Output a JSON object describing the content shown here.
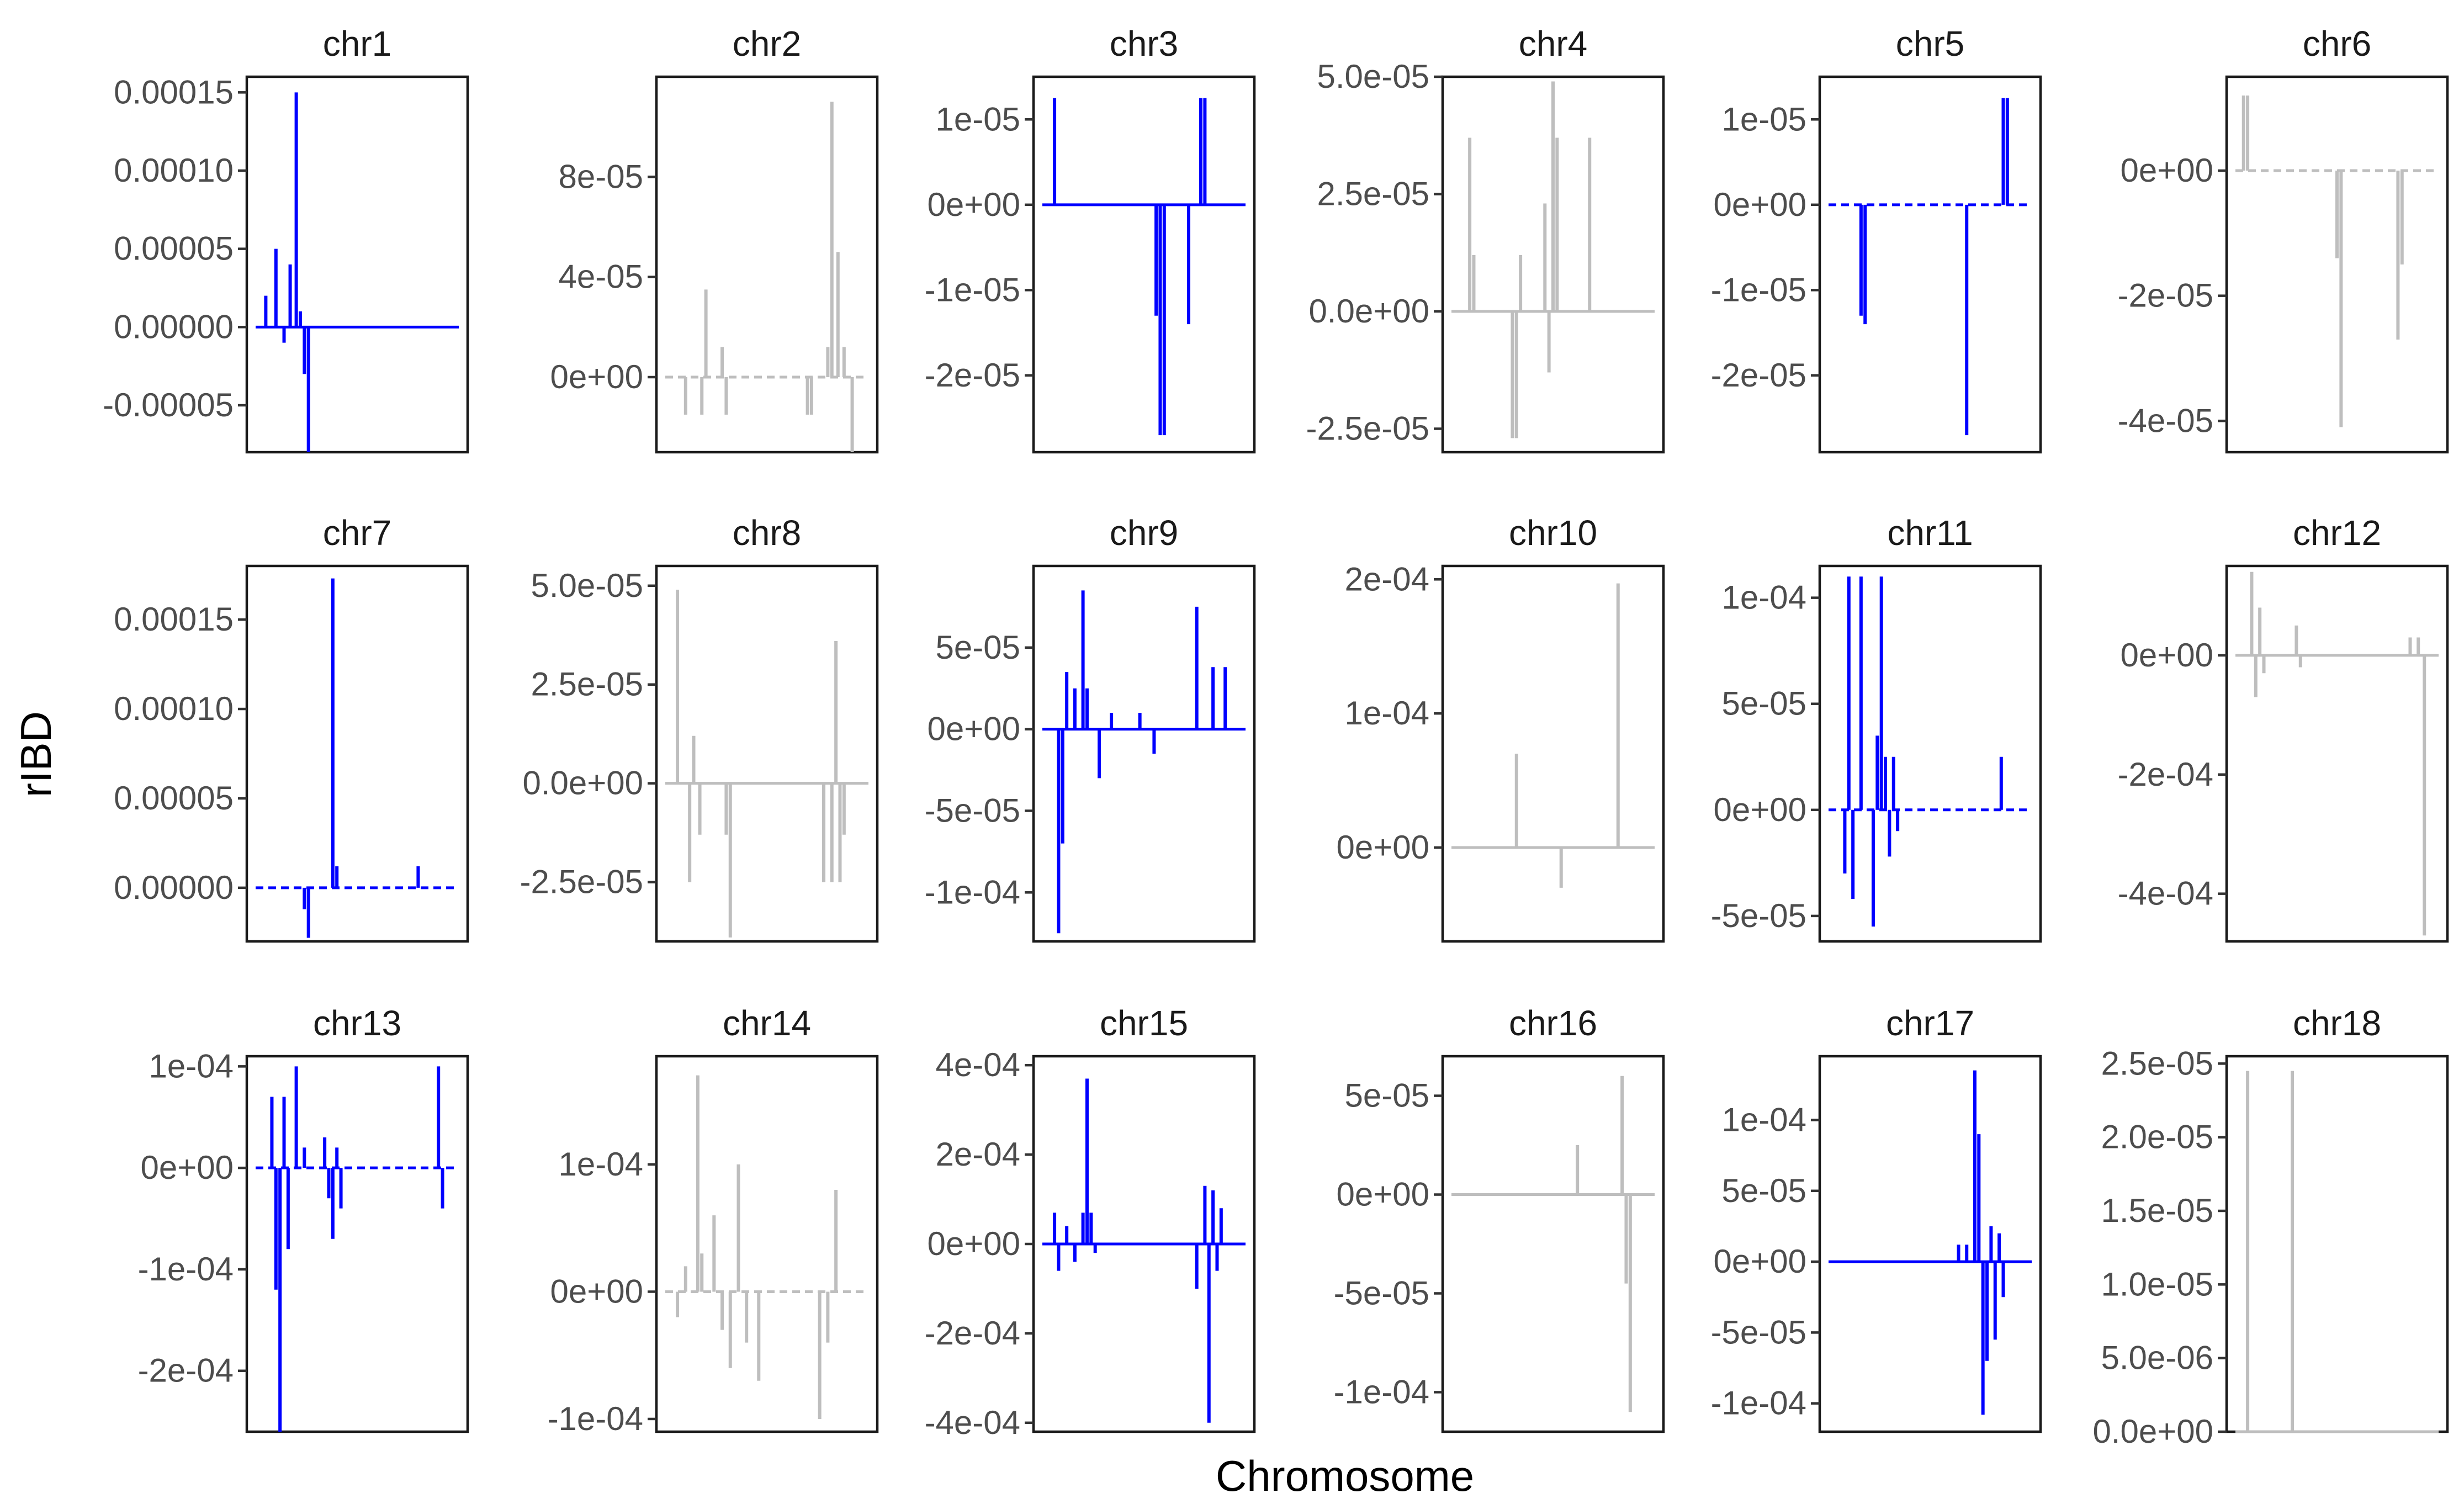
{
  "figure": {
    "x_axis_title": "Chromosome",
    "y_axis_title": "rIBD"
  },
  "colors": {
    "highlight": "#0000ff",
    "muted": "#bebebe",
    "frame": "#1a1a1a",
    "text": "#1a1a1a",
    "tick_text": "#4d4d4d"
  },
  "chart_data": [
    {
      "type": "line",
      "title": "chr1",
      "style": "highlight",
      "dashed_baseline": false,
      "ylim": [
        -8e-05,
        0.00016
      ],
      "y_ticks": [
        -5e-05,
        0,
        5e-05,
        0.0001,
        0.00015
      ],
      "y_tick_labels": [
        "-0.00005",
        "0.00000",
        "0.00005",
        "0.00010",
        "0.00015"
      ],
      "x": [
        0.05,
        0.1,
        0.14,
        0.17,
        0.2,
        0.22,
        0.24,
        0.26,
        0.28,
        0.3,
        0.45,
        0.6,
        0.75,
        0.9,
        0.99
      ],
      "values": [
        2e-05,
        5e-05,
        -1e-05,
        4e-05,
        0.00015,
        1e-05,
        -3e-05,
        -8e-05,
        0,
        0,
        0,
        0,
        0,
        0,
        0
      ]
    },
    {
      "type": "line",
      "title": "chr2",
      "style": "muted",
      "dashed_baseline": true,
      "ylim": [
        -3e-05,
        0.00012
      ],
      "y_ticks": [
        0,
        4e-05,
        8e-05
      ],
      "y_tick_labels": [
        "0e+00",
        "4e-05",
        "8e-05"
      ],
      "x": [
        0.1,
        0.18,
        0.2,
        0.28,
        0.3,
        0.7,
        0.72,
        0.8,
        0.82,
        0.85,
        0.88,
        0.92
      ],
      "values": [
        -1.5e-05,
        -1.5e-05,
        3.5e-05,
        1.2e-05,
        -1.5e-05,
        -1.5e-05,
        -1.5e-05,
        1.2e-05,
        0.00011,
        5e-05,
        1.2e-05,
        -3e-05
      ]
    },
    {
      "type": "line",
      "title": "chr3",
      "style": "highlight",
      "dashed_baseline": false,
      "ylim": [
        -2.9e-05,
        1.5e-05
      ],
      "y_ticks": [
        -2e-05,
        -1e-05,
        0,
        1e-05
      ],
      "y_tick_labels": [
        "-2e-05",
        "-1e-05",
        "0e+00",
        "1e-05"
      ],
      "x": [
        0.06,
        0.56,
        0.58,
        0.6,
        0.72,
        0.78,
        0.8
      ],
      "values": [
        1.25e-05,
        -1.3e-05,
        -2.7e-05,
        -2.7e-05,
        -1.4e-05,
        1.25e-05,
        1.25e-05
      ]
    },
    {
      "type": "line",
      "title": "chr4",
      "style": "muted",
      "dashed_baseline": false,
      "ylim": [
        -3e-05,
        5e-05
      ],
      "y_ticks": [
        -2.5e-05,
        0,
        2.5e-05,
        5e-05
      ],
      "y_tick_labels": [
        "-2.5e-05",
        "0.0e+00",
        "2.5e-05",
        "5.0e-05"
      ],
      "x": [
        0.09,
        0.11,
        0.3,
        0.32,
        0.34,
        0.46,
        0.48,
        0.5,
        0.52,
        0.68
      ],
      "values": [
        3.7e-05,
        1.2e-05,
        -2.7e-05,
        -2.7e-05,
        1.2e-05,
        2.3e-05,
        -1.3e-05,
        4.9e-05,
        3.7e-05,
        3.7e-05
      ]
    },
    {
      "type": "line",
      "title": "chr5",
      "style": "highlight",
      "dashed_baseline": true,
      "ylim": [
        -2.9e-05,
        1.5e-05
      ],
      "y_ticks": [
        -2e-05,
        -1e-05,
        0,
        1e-05
      ],
      "y_tick_labels": [
        "-2e-05",
        "-1e-05",
        "0e+00",
        "1e-05"
      ],
      "x": [
        0.16,
        0.18,
        0.68,
        0.86,
        0.88
      ],
      "values": [
        -1.3e-05,
        -1.4e-05,
        -2.7e-05,
        1.25e-05,
        1.25e-05
      ]
    },
    {
      "type": "line",
      "title": "chr6",
      "style": "muted",
      "dashed_baseline": true,
      "ylim": [
        -4.5e-05,
        1.5e-05
      ],
      "y_ticks": [
        -4e-05,
        -2e-05,
        0
      ],
      "y_tick_labels": [
        "-4e-05",
        "-2e-05",
        "0e+00"
      ],
      "x": [
        0.04,
        0.06,
        0.5,
        0.52,
        0.8,
        0.82
      ],
      "values": [
        1.2e-05,
        1.2e-05,
        -1.4e-05,
        -4.1e-05,
        -2.7e-05,
        -1.5e-05
      ]
    },
    {
      "type": "line",
      "title": "chr7",
      "style": "highlight",
      "dashed_baseline": true,
      "ylim": [
        -3e-05,
        0.00018
      ],
      "y_ticks": [
        0,
        5e-05,
        0.0001,
        0.00015
      ],
      "y_tick_labels": [
        "0.00000",
        "0.00005",
        "0.00010",
        "0.00015"
      ],
      "x": [
        0.24,
        0.26,
        0.38,
        0.4,
        0.8
      ],
      "values": [
        -1.2e-05,
        -2.8e-05,
        0.000173,
        1.2e-05,
        1.2e-05
      ]
    },
    {
      "type": "line",
      "title": "chr8",
      "style": "muted",
      "dashed_baseline": false,
      "ylim": [
        -4e-05,
        5.5e-05
      ],
      "y_ticks": [
        -2.5e-05,
        0,
        2.5e-05,
        5e-05
      ],
      "y_tick_labels": [
        "-2.5e-05",
        "0.0e+00",
        "2.5e-05",
        "5.0e-05"
      ],
      "x": [
        0.06,
        0.12,
        0.14,
        0.17,
        0.3,
        0.32,
        0.78,
        0.82,
        0.84,
        0.86,
        0.88
      ],
      "values": [
        4.9e-05,
        -2.5e-05,
        1.2e-05,
        -1.3e-05,
        -1.3e-05,
        -3.9e-05,
        -2.5e-05,
        -2.5e-05,
        3.6e-05,
        -2.5e-05,
        -1.3e-05
      ]
    },
    {
      "type": "line",
      "title": "chr9",
      "style": "highlight",
      "dashed_baseline": false,
      "ylim": [
        -0.00013,
        0.0001
      ],
      "y_ticks": [
        -0.0001,
        -5e-05,
        0,
        5e-05
      ],
      "y_tick_labels": [
        "-1e-04",
        "-5e-05",
        "0e+00",
        "5e-05"
      ],
      "x": [
        0.08,
        0.1,
        0.12,
        0.16,
        0.2,
        0.22,
        0.28,
        0.34,
        0.48,
        0.55,
        0.76,
        0.84,
        0.9
      ],
      "values": [
        -0.000125,
        -7e-05,
        3.5e-05,
        2.5e-05,
        8.5e-05,
        2.5e-05,
        -3e-05,
        1e-05,
        1e-05,
        -1.5e-05,
        7.5e-05,
        3.8e-05,
        3.8e-05
      ]
    },
    {
      "type": "line",
      "title": "chr10",
      "style": "muted",
      "dashed_baseline": false,
      "ylim": [
        -7e-05,
        0.00021
      ],
      "y_ticks": [
        0,
        0.0001,
        0.0002
      ],
      "y_tick_labels": [
        "0e+00",
        "1e-04",
        "2e-04"
      ],
      "x": [
        0.32,
        0.54,
        0.82
      ],
      "values": [
        7e-05,
        -3e-05,
        0.000197
      ]
    },
    {
      "type": "line",
      "title": "chr11",
      "style": "highlight",
      "dashed_baseline": true,
      "ylim": [
        -6.2e-05,
        0.000115
      ],
      "y_ticks": [
        -5e-05,
        0,
        5e-05,
        0.0001
      ],
      "y_tick_labels": [
        "-5e-05",
        "0e+00",
        "5e-05",
        "1e-04"
      ],
      "x": [
        0.08,
        0.1,
        0.12,
        0.16,
        0.22,
        0.24,
        0.26,
        0.28,
        0.3,
        0.32,
        0.34,
        0.85
      ],
      "values": [
        -3e-05,
        0.00011,
        -4.2e-05,
        0.00011,
        -5.5e-05,
        3.5e-05,
        0.00011,
        2.5e-05,
        -2.2e-05,
        2.5e-05,
        -1e-05,
        2.5e-05
      ]
    },
    {
      "type": "line",
      "title": "chr12",
      "style": "muted",
      "dashed_baseline": false,
      "ylim": [
        -0.00048,
        0.00015
      ],
      "y_ticks": [
        -0.0004,
        -0.0002,
        0
      ],
      "y_tick_labels": [
        "-4e-04",
        "-2e-04",
        "0e+00"
      ],
      "x": [
        0.08,
        0.1,
        0.12,
        0.14,
        0.3,
        0.32,
        0.86,
        0.9,
        0.93
      ],
      "values": [
        0.00014,
        -7e-05,
        8e-05,
        -3e-05,
        5e-05,
        -2e-05,
        3e-05,
        3e-05,
        -0.00047
      ]
    },
    {
      "type": "line",
      "title": "chr13",
      "style": "highlight",
      "dashed_baseline": true,
      "ylim": [
        -0.00026,
        0.00011
      ],
      "y_ticks": [
        -0.0002,
        -0.0001,
        0,
        0.0001
      ],
      "y_tick_labels": [
        "-2e-04",
        "-1e-04",
        "0e+00",
        "1e-04"
      ],
      "x": [
        0.08,
        0.1,
        0.12,
        0.14,
        0.16,
        0.2,
        0.24,
        0.34,
        0.36,
        0.38,
        0.4,
        0.42,
        0.9,
        0.92
      ],
      "values": [
        7e-05,
        -0.00012,
        -0.00026,
        7e-05,
        -8e-05,
        0.0001,
        2e-05,
        3e-05,
        -3e-05,
        -7e-05,
        2e-05,
        -4e-05,
        0.0001,
        -4e-05
      ]
    },
    {
      "type": "line",
      "title": "chr14",
      "style": "muted",
      "dashed_baseline": true,
      "ylim": [
        -0.00011,
        0.000185
      ],
      "y_ticks": [
        -0.0001,
        0,
        0.0001
      ],
      "y_tick_labels": [
        "-1e-04",
        "0e+00",
        "1e-04"
      ],
      "x": [
        0.06,
        0.1,
        0.16,
        0.18,
        0.24,
        0.28,
        0.32,
        0.36,
        0.4,
        0.46,
        0.76,
        0.8,
        0.84
      ],
      "values": [
        -2e-05,
        2e-05,
        0.00017,
        3e-05,
        6e-05,
        -3e-05,
        -6e-05,
        0.0001,
        -4e-05,
        -7e-05,
        -0.0001,
        -4e-05,
        8e-05
      ]
    },
    {
      "type": "line",
      "title": "chr15",
      "style": "highlight",
      "dashed_baseline": false,
      "ylim": [
        -0.00042,
        0.00042
      ],
      "y_ticks": [
        -0.0004,
        -0.0002,
        0,
        0.0002,
        0.0004
      ],
      "y_tick_labels": [
        "-4e-04",
        "-2e-04",
        "0e+00",
        "2e-04",
        "4e-04"
      ],
      "x": [
        0.06,
        0.08,
        0.12,
        0.16,
        0.2,
        0.22,
        0.24,
        0.26,
        0.76,
        0.8,
        0.82,
        0.84,
        0.86,
        0.88
      ],
      "values": [
        7e-05,
        -6e-05,
        4e-05,
        -4e-05,
        7e-05,
        0.00037,
        7e-05,
        -2e-05,
        -0.0001,
        0.00013,
        -0.0004,
        0.00012,
        -6e-05,
        8e-05
      ]
    },
    {
      "type": "line",
      "title": "chr16",
      "style": "muted",
      "dashed_baseline": false,
      "ylim": [
        -0.00012,
        7e-05
      ],
      "y_ticks": [
        -0.0001,
        -5e-05,
        0,
        5e-05
      ],
      "y_tick_labels": [
        "-1e-04",
        "-5e-05",
        "0e+00",
        "5e-05"
      ],
      "x": [
        0.62,
        0.84,
        0.86,
        0.88
      ],
      "values": [
        2.5e-05,
        6e-05,
        -4.5e-05,
        -0.00011
      ]
    },
    {
      "type": "line",
      "title": "chr17",
      "style": "highlight",
      "dashed_baseline": false,
      "ylim": [
        -0.00012,
        0.000145
      ],
      "y_ticks": [
        -0.0001,
        -5e-05,
        0,
        5e-05,
        0.0001
      ],
      "y_tick_labels": [
        "-1e-04",
        "-5e-05",
        "0e+00",
        "5e-05",
        "1e-04"
      ],
      "x": [
        0.64,
        0.68,
        0.72,
        0.74,
        0.76,
        0.78,
        0.8,
        0.82,
        0.84,
        0.86
      ],
      "values": [
        1.2e-05,
        1.2e-05,
        0.000135,
        9e-05,
        -0.000108,
        -7e-05,
        2.5e-05,
        -5.5e-05,
        2e-05,
        -2.5e-05
      ]
    },
    {
      "type": "line",
      "title": "chr18",
      "style": "muted",
      "dashed_baseline": false,
      "ylim": [
        0,
        2.55e-05
      ],
      "y_ticks": [
        0,
        5e-06,
        1e-05,
        1.5e-05,
        2e-05,
        2.5e-05
      ],
      "y_tick_labels": [
        "0.0e+00",
        "5.0e-06",
        "1.0e-05",
        "1.5e-05",
        "2.0e-05",
        "2.5e-05"
      ],
      "x": [
        0.06,
        0.28
      ],
      "values": [
        2.45e-05,
        2.45e-05
      ]
    }
  ]
}
